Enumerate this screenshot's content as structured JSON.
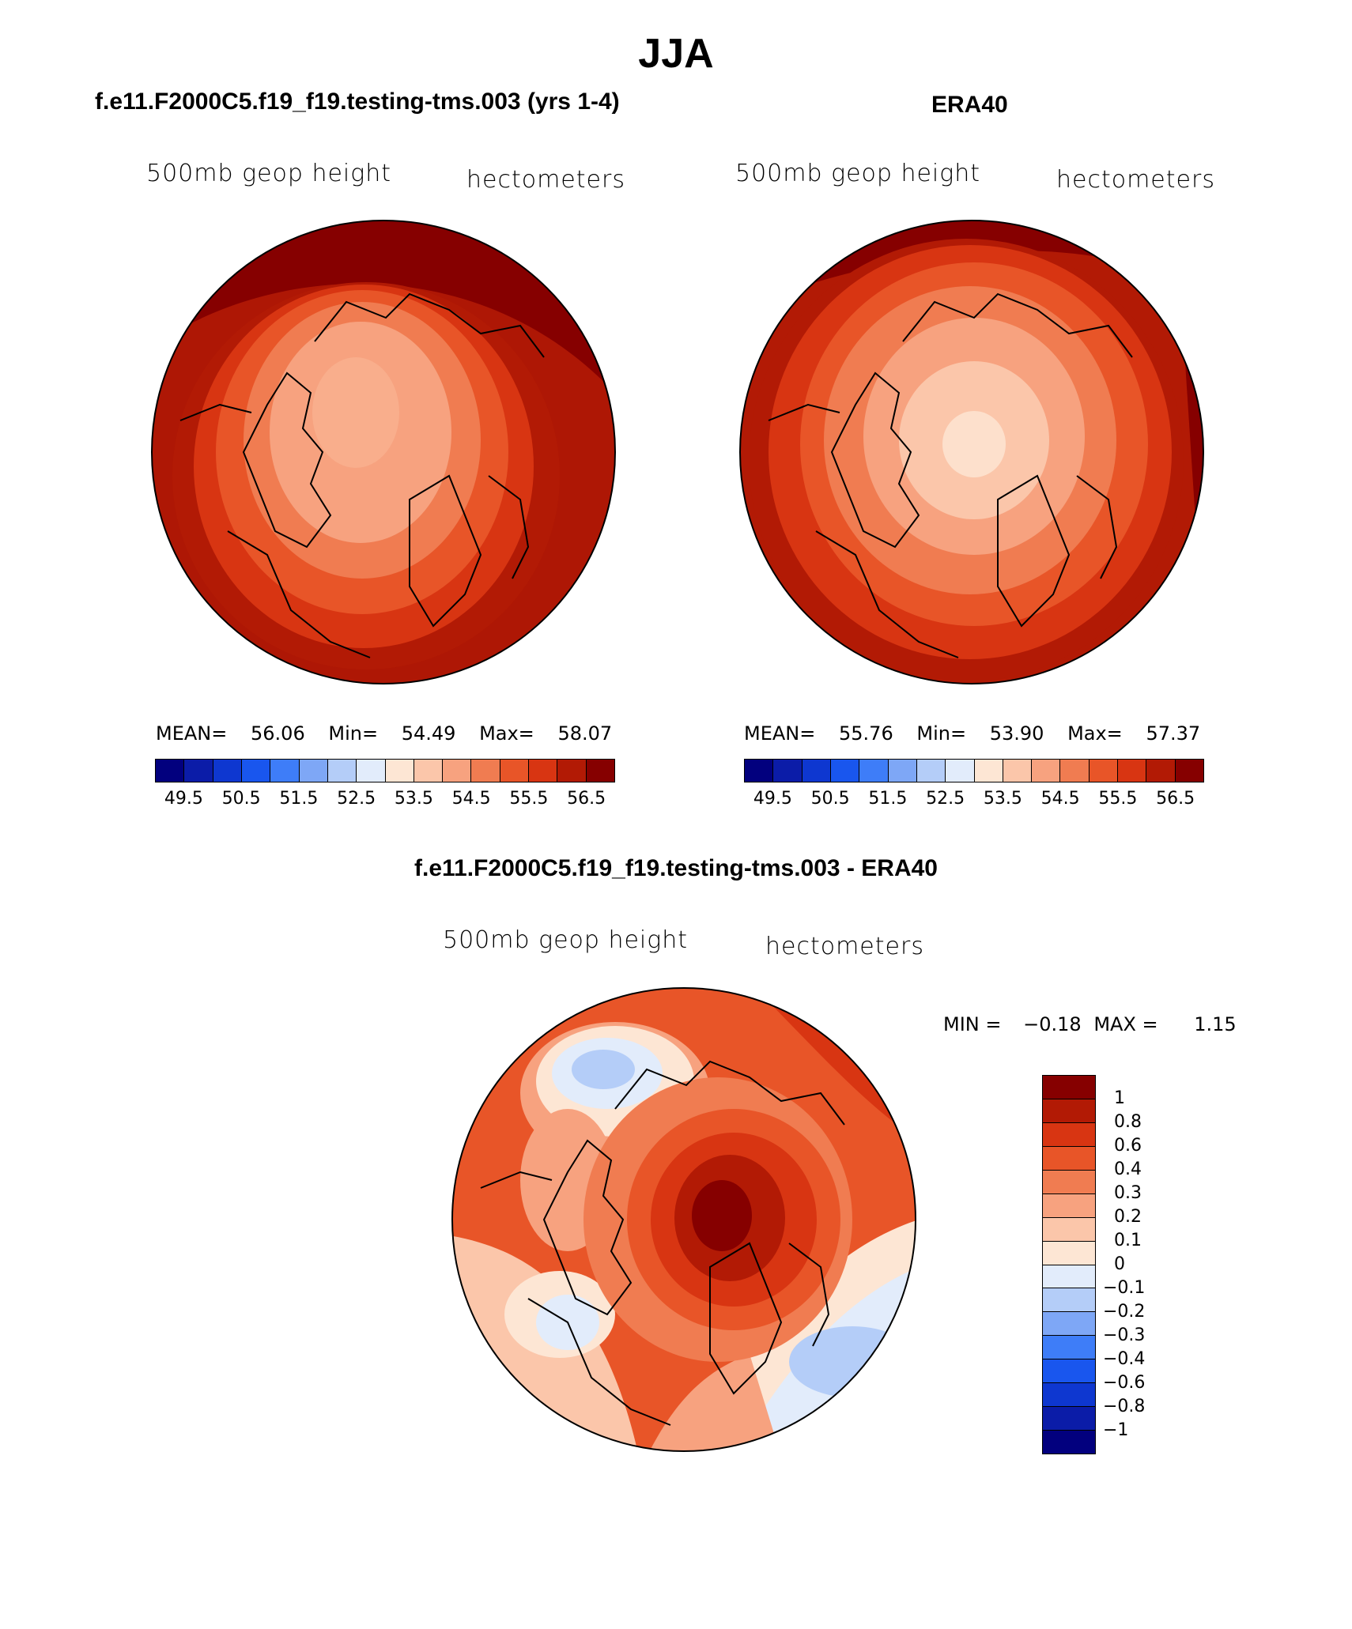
{
  "season_title": "JJA",
  "palette": [
    "#02007e",
    "#0b1ca8",
    "#0e37d0",
    "#1956ee",
    "#3e7df8",
    "#7ea7f6",
    "#b4cdf8",
    "#e2ecfb",
    "#fde6d4",
    "#fbc6aa",
    "#f7a27f",
    "#f07c51",
    "#e85528",
    "#d83512",
    "#b21a05",
    "#860000"
  ],
  "panels": [
    {
      "title": "f.e11.F2000C5.f19_f19.testing-tms.003 (yrs 1-4)",
      "variable": "500mb geop height",
      "units": "hectometers",
      "stats": {
        "mean_label": "MEAN=",
        "mean": "56.06",
        "min_label": "Min=",
        "min": "54.49",
        "max_label": "Max=",
        "max": "58.07"
      },
      "colorbar_labels": [
        "49.5",
        "50.5",
        "51.5",
        "52.5",
        "53.5",
        "54.5",
        "55.5",
        "56.5"
      ]
    },
    {
      "title": "ERA40",
      "variable": "500mb geop height",
      "units": "hectometers",
      "stats": {
        "mean_label": "MEAN=",
        "mean": "55.76",
        "min_label": "Min=",
        "min": "53.90",
        "max_label": "Max=",
        "max": "57.37"
      },
      "colorbar_labels": [
        "49.5",
        "50.5",
        "51.5",
        "52.5",
        "53.5",
        "54.5",
        "55.5",
        "56.5"
      ]
    }
  ],
  "diff": {
    "title": "f.e11.F2000C5.f19_f19.testing-tms.003 - ERA40",
    "variable": "500mb geop height",
    "units": "hectometers",
    "minmax": {
      "min_label": "MIN =",
      "min": "−0.18",
      "max_label": "MAX =",
      "max": "1.15"
    },
    "colorbar_labels": [
      "1",
      "0.8",
      "0.6",
      "0.4",
      "0.3",
      "0.2",
      "0.1",
      "0",
      "−0.1",
      "−0.2",
      "−0.3",
      "−0.4",
      "−0.6",
      "−0.8",
      "−1"
    ]
  }
}
